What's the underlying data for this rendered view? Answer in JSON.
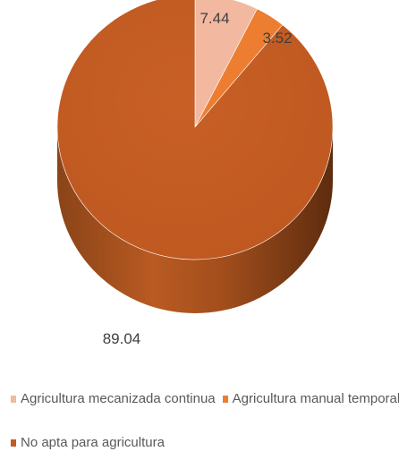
{
  "chart_data": {
    "type": "pie",
    "categories": [
      "Agricultura mecanizada continua",
      "Agricultura manual temporal",
      "No apta para agricultura"
    ],
    "values": [
      7.44,
      3.52,
      89.04
    ],
    "data_labels": [
      "7.44",
      "3.52",
      "89.04"
    ],
    "colors": [
      "#F2B9A0",
      "#ED7D31",
      "#C55A24"
    ],
    "side_colors": [
      "#C99680",
      "#B85E22",
      "#7A3A14"
    ],
    "three_d": true,
    "legend_position": "bottom",
    "title": ""
  }
}
